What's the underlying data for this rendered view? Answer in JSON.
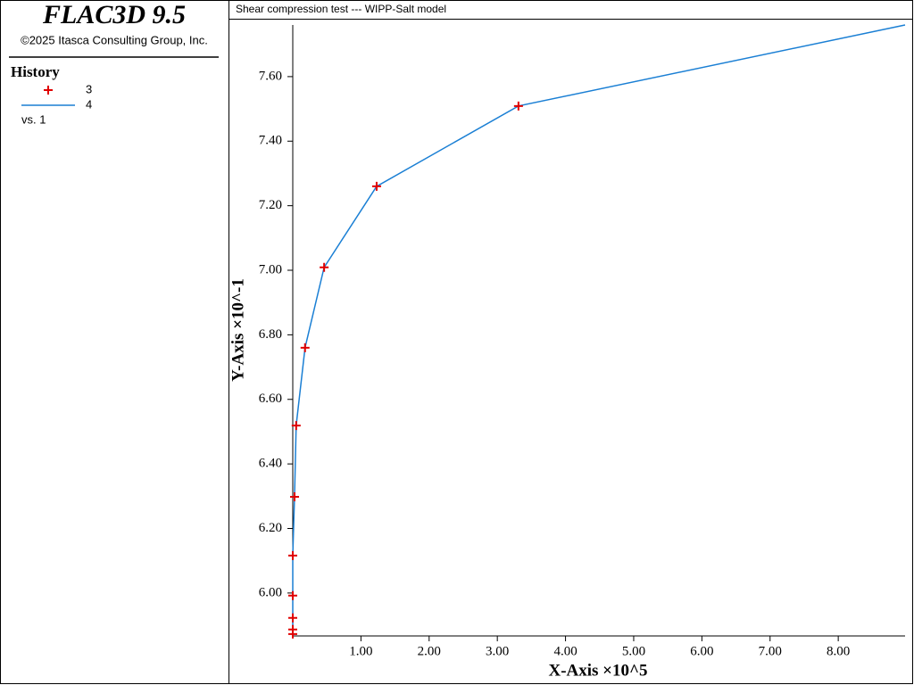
{
  "chart_data": {
    "type": "line",
    "app_title": "FLAC3D 9.5",
    "copyright": "©2025 Itasca Consulting Group, Inc.",
    "legend_title": "History",
    "legend_note": "vs. 1",
    "title": "Shear compression test --- WIPP-Salt model",
    "x_label": "X-Axis ×10^5",
    "y_label": "Y-Axis ×10^-1",
    "x": [
      0,
      0,
      0,
      0,
      0,
      0.026,
      0.05,
      0.18,
      0.46,
      1.23,
      3.31,
      8.98
    ],
    "series": [
      {
        "name": "3",
        "color": "#e00000",
        "marker": "+",
        "values": [
          5.873,
          5.887,
          5.923,
          5.992,
          6.116,
          6.298,
          6.519,
          6.76,
          7.009,
          7.26,
          7.509,
          null
        ]
      },
      {
        "name": "4",
        "color": "#1a7fd4",
        "values": [
          5.873,
          5.887,
          5.923,
          5.992,
          6.116,
          6.298,
          6.519,
          6.76,
          7.009,
          7.26,
          7.509,
          7.76
        ]
      }
    ],
    "xlim": [
      0,
      8.98
    ],
    "ylim": [
      5.867,
      7.76
    ],
    "xticks": [
      {
        "value": 1,
        "label": "1.00"
      },
      {
        "value": 2,
        "label": "2.00"
      },
      {
        "value": 3,
        "label": "3.00"
      },
      {
        "value": 4,
        "label": "4.00"
      },
      {
        "value": 5,
        "label": "5.00"
      },
      {
        "value": 6,
        "label": "6.00"
      },
      {
        "value": 7,
        "label": "7.00"
      },
      {
        "value": 8,
        "label": "8.00"
      }
    ],
    "yticks": [
      {
        "value": 6,
        "label": "6.00"
      },
      {
        "value": 6.2,
        "label": "6.20"
      },
      {
        "value": 6.4,
        "label": "6.40"
      },
      {
        "value": 6.6,
        "label": "6.60"
      },
      {
        "value": 6.8,
        "label": "6.80"
      },
      {
        "value": 7,
        "label": "7.00"
      },
      {
        "value": 7.2,
        "label": "7.20"
      },
      {
        "value": 7.4,
        "label": "7.40"
      },
      {
        "value": 7.6,
        "label": "7.60"
      }
    ],
    "grid": false
  }
}
